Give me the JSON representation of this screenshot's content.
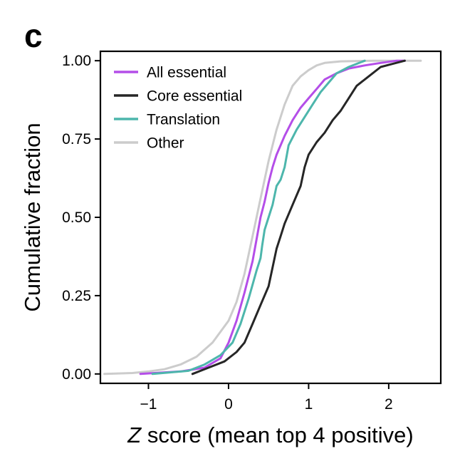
{
  "panel_label": "c",
  "chart_data": {
    "type": "line",
    "title": "",
    "xlabel_italic": "Z",
    "xlabel_rest": " score (mean top 4 positive)",
    "ylabel": "Cumulative fraction",
    "xlim": [
      -1.6,
      2.65
    ],
    "ylim": [
      -0.03,
      1.03
    ],
    "x_ticks": [
      -1,
      0,
      1,
      2
    ],
    "x_tick_labels": [
      "−1",
      "0",
      "1",
      "2"
    ],
    "y_ticks": [
      0,
      0.25,
      0.5,
      0.75,
      1.0
    ],
    "y_tick_labels": [
      "0.00",
      "0.25",
      "0.50",
      "0.75",
      "1.00"
    ],
    "grid": false,
    "legend_position": "top-left",
    "series": [
      {
        "name": "Other",
        "color": "#cccccc",
        "points": [
          [
            -1.55,
            0.0
          ],
          [
            -1.2,
            0.003
          ],
          [
            -1.0,
            0.008
          ],
          [
            -0.8,
            0.015
          ],
          [
            -0.6,
            0.03
          ],
          [
            -0.4,
            0.055
          ],
          [
            -0.2,
            0.1
          ],
          [
            0.0,
            0.17
          ],
          [
            0.1,
            0.23
          ],
          [
            0.2,
            0.32
          ],
          [
            0.3,
            0.44
          ],
          [
            0.4,
            0.56
          ],
          [
            0.5,
            0.68
          ],
          [
            0.6,
            0.78
          ],
          [
            0.7,
            0.86
          ],
          [
            0.8,
            0.92
          ],
          [
            0.9,
            0.95
          ],
          [
            1.0,
            0.97
          ],
          [
            1.1,
            0.985
          ],
          [
            1.2,
            0.993
          ],
          [
            1.4,
            0.998
          ],
          [
            1.8,
            1.0
          ],
          [
            2.4,
            1.0
          ]
        ]
      },
      {
        "name": "All essential",
        "color": "#b44ee8",
        "points": [
          [
            -1.1,
            0.0
          ],
          [
            -0.6,
            0.008
          ],
          [
            -0.3,
            0.02
          ],
          [
            -0.1,
            0.05
          ],
          [
            0.0,
            0.1
          ],
          [
            0.1,
            0.17
          ],
          [
            0.2,
            0.26
          ],
          [
            0.3,
            0.36
          ],
          [
            0.35,
            0.43
          ],
          [
            0.4,
            0.5
          ],
          [
            0.45,
            0.55
          ],
          [
            0.5,
            0.61
          ],
          [
            0.55,
            0.66
          ],
          [
            0.6,
            0.7
          ],
          [
            0.7,
            0.76
          ],
          [
            0.8,
            0.81
          ],
          [
            0.9,
            0.85
          ],
          [
            1.0,
            0.88
          ],
          [
            1.1,
            0.91
          ],
          [
            1.2,
            0.94
          ],
          [
            1.35,
            0.96
          ],
          [
            1.5,
            0.975
          ],
          [
            1.7,
            0.985
          ],
          [
            1.9,
            0.993
          ],
          [
            2.1,
            1.0
          ],
          [
            2.2,
            1.0
          ]
        ]
      },
      {
        "name": "Translation",
        "color": "#4db6ac",
        "points": [
          [
            -0.95,
            0.0
          ],
          [
            -0.5,
            0.01
          ],
          [
            -0.3,
            0.03
          ],
          [
            -0.1,
            0.06
          ],
          [
            0.05,
            0.1
          ],
          [
            0.15,
            0.16
          ],
          [
            0.25,
            0.24
          ],
          [
            0.35,
            0.33
          ],
          [
            0.4,
            0.37
          ],
          [
            0.42,
            0.41
          ],
          [
            0.45,
            0.46
          ],
          [
            0.5,
            0.5
          ],
          [
            0.55,
            0.54
          ],
          [
            0.6,
            0.6
          ],
          [
            0.65,
            0.62
          ],
          [
            0.7,
            0.66
          ],
          [
            0.75,
            0.73
          ],
          [
            0.85,
            0.78
          ],
          [
            0.95,
            0.82
          ],
          [
            1.05,
            0.86
          ],
          [
            1.15,
            0.9
          ],
          [
            1.25,
            0.93
          ],
          [
            1.35,
            0.96
          ],
          [
            1.5,
            0.98
          ],
          [
            1.6,
            0.99
          ],
          [
            1.7,
            1.0
          ]
        ]
      },
      {
        "name": "Core essential",
        "color": "#262626",
        "points": [
          [
            -0.45,
            0.0
          ],
          [
            -0.25,
            0.02
          ],
          [
            -0.05,
            0.04
          ],
          [
            0.1,
            0.07
          ],
          [
            0.2,
            0.1
          ],
          [
            0.3,
            0.16
          ],
          [
            0.4,
            0.22
          ],
          [
            0.5,
            0.28
          ],
          [
            0.55,
            0.34
          ],
          [
            0.6,
            0.4
          ],
          [
            0.65,
            0.44
          ],
          [
            0.7,
            0.48
          ],
          [
            0.8,
            0.54
          ],
          [
            0.9,
            0.6
          ],
          [
            0.95,
            0.66
          ],
          [
            1.0,
            0.7
          ],
          [
            1.1,
            0.74
          ],
          [
            1.2,
            0.77
          ],
          [
            1.3,
            0.81
          ],
          [
            1.4,
            0.84
          ],
          [
            1.5,
            0.88
          ],
          [
            1.6,
            0.92
          ],
          [
            1.75,
            0.95
          ],
          [
            1.9,
            0.98
          ],
          [
            2.05,
            0.99
          ],
          [
            2.2,
            1.0
          ]
        ]
      }
    ],
    "legend_order": [
      "All essential",
      "Core essential",
      "Translation",
      "Other"
    ]
  }
}
